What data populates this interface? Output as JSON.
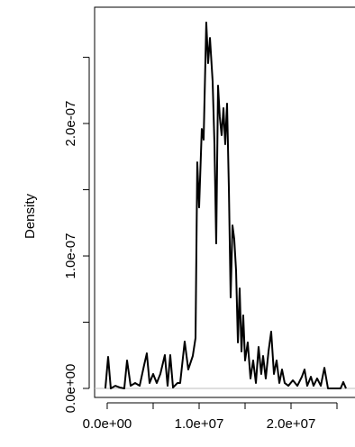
{
  "chart_data": {
    "type": "line",
    "y_label": "Density",
    "x": [
      -200000.0,
      100000.0,
      390000.0,
      880000.0,
      1370000.0,
      1860000.0,
      2160000.0,
      2550000.0,
      3040000.0,
      3530000.0,
      4020000.0,
      4310000.0,
      4610000.0,
      5000000.0,
      5390000.0,
      5780000.0,
      6270000.0,
      6570000.0,
      6860000.0,
      7160000.0,
      7650000.0,
      7940000.0,
      8430000.0,
      8820000.0,
      9310000.0,
      9610000.0,
      9800000.0,
      10000000.0,
      10290000.0,
      10490000.0,
      10780000.0,
      10980000.0,
      11180000.0,
      11470000.0,
      11670000.0,
      11860000.0,
      12060000.0,
      12250000.0,
      12450000.0,
      12650000.0,
      12840000.0,
      13040000.0,
      13240000.0,
      13430000.0,
      13630000.0,
      13820000.0,
      14020000.0,
      14220000.0,
      14410000.0,
      14610000.0,
      14800000.0,
      15000000.0,
      15290000.0,
      15590000.0,
      15880000.0,
      16180000.0,
      16470000.0,
      16760000.0,
      16960000.0,
      17250000.0,
      17550000.0,
      17840000.0,
      18140000.0,
      18430000.0,
      18730000.0,
      19020000.0,
      19310000.0,
      19710000.0,
      20200000.0,
      20690000.0,
      21180000.0,
      21470000.0,
      21760000.0,
      22160000.0,
      22450000.0,
      22840000.0,
      23240000.0,
      23630000.0,
      24020000.0,
      24610000.0,
      25390000.0,
      25690000.0,
      25980000.0
    ],
    "series": [
      {
        "color": "#000000",
        "values": [
          0,
          2.38e-08,
          0,
          2e-09,
          7e-10,
          0,
          2.11e-08,
          2e-09,
          4.1e-09,
          2e-09,
          1.77e-08,
          2.65e-08,
          4.1e-09,
          1.09e-08,
          4.1e-09,
          1.09e-08,
          2.52e-08,
          2e-09,
          2.52e-08,
          7e-10,
          4.1e-09,
          4.1e-09,
          3.54e-08,
          1.43e-08,
          2.45e-08,
          3.81e-08,
          1.707e-07,
          1.367e-07,
          1.959e-07,
          1.878e-07,
          2.762e-07,
          2.456e-07,
          2.646e-07,
          2.32e-07,
          1.844e-07,
          1.095e-07,
          2.286e-07,
          2.048e-07,
          1.912e-07,
          2.116e-07,
          1.844e-07,
          2.15e-07,
          1.503e-07,
          6.87e-08,
          1.231e-07,
          1.129e-07,
          8.91e-08,
          3.47e-08,
          7.55e-08,
          2.79e-08,
          5.51e-08,
          2.11e-08,
          3.47e-08,
          7.5e-09,
          2.11e-08,
          4.1e-09,
          3.13e-08,
          1.09e-08,
          2.45e-08,
          7.5e-09,
          2.79e-08,
          4.29e-08,
          1.09e-08,
          2.11e-08,
          4.1e-09,
          1.43e-08,
          4.1e-09,
          2e-09,
          6.1e-09,
          2e-09,
          8.8e-09,
          1.43e-08,
          2e-09,
          8.8e-09,
          2e-09,
          7.5e-09,
          2e-09,
          1.56e-08,
          0,
          0,
          0,
          4.8e-09,
          0
        ]
      }
    ],
    "xlim": [
      -1370000.0,
      26960000.0
    ],
    "ylim": [
      -6.8e-09,
      2.878e-07
    ],
    "xticks": [
      {
        "value": 0,
        "label": "0.0e+00"
      },
      {
        "value": 5000000.0,
        "label": null
      },
      {
        "value": 10000000.0,
        "label": "1.0e+07"
      },
      {
        "value": 15000000.0,
        "label": null
      },
      {
        "value": 20000000.0,
        "label": "2.0e+07"
      },
      {
        "value": 25000000.0,
        "label": null
      }
    ],
    "yticks": [
      {
        "value": 0,
        "label": "0.0e+00"
      },
      {
        "value": 5e-08,
        "label": null
      },
      {
        "value": 1e-07,
        "label": "1.0e-07"
      },
      {
        "value": 1.5e-07,
        "label": null
      },
      {
        "value": 2e-07,
        "label": "2.0e-07"
      },
      {
        "value": 2.5e-07,
        "label": null
      }
    ],
    "zero_line_color": "#bebebe"
  }
}
